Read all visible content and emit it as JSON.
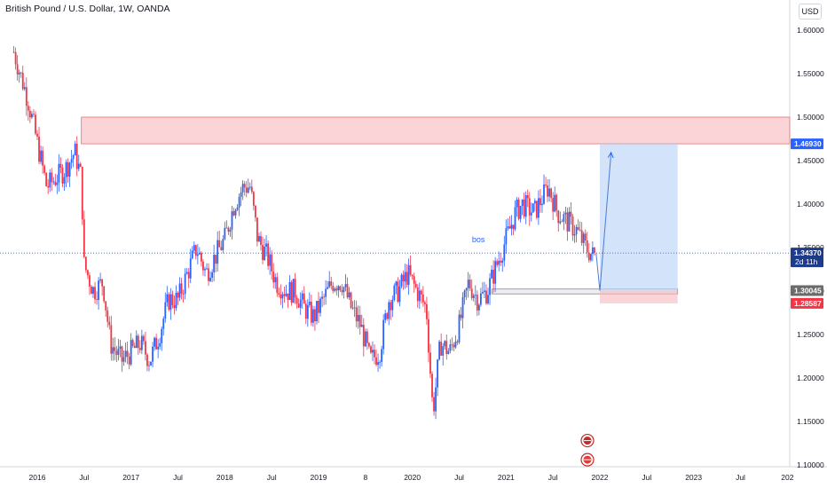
{
  "title": "British Pound / U.S. Dollar, 1W, OANDA",
  "currency": "USD",
  "chart_data": {
    "type": "candlestick",
    "symbol": "GBPUSD",
    "interval": "1W",
    "ylim": [
      1.1,
      1.62
    ],
    "y_ticks": [
      "1.60000",
      "1.55000",
      "1.50000",
      "1.45000",
      "1.40000",
      "1.35000",
      "1.30000",
      "1.25000",
      "1.20000",
      "1.15000",
      "1.10000"
    ],
    "y_tick_values": [
      1.6,
      1.55,
      1.5,
      1.45,
      1.4,
      1.35,
      1.3,
      1.25,
      1.2,
      1.15,
      1.1
    ],
    "x_labels": [
      "2016",
      "Jul",
      "2017",
      "Jul",
      "2018",
      "Jul",
      "2019",
      "8",
      "2020",
      "Jul",
      "2021",
      "Jul",
      "2022",
      "Jul",
      "2023",
      "Jul",
      "202"
    ],
    "x_label_dates": [
      2016.0,
      2016.5,
      2017.0,
      2017.5,
      2018.0,
      2018.5,
      2019.0,
      2019.5,
      2020.0,
      2020.5,
      2021.0,
      2021.5,
      2022.0,
      2022.5,
      2023.0,
      2023.5,
      2024.0
    ],
    "price_path": [
      [
        2015.75,
        1.575
      ],
      [
        2015.9,
        1.52
      ],
      [
        2016.0,
        1.47
      ],
      [
        2016.1,
        1.42
      ],
      [
        2016.2,
        1.43
      ],
      [
        2016.3,
        1.44
      ],
      [
        2016.4,
        1.46
      ],
      [
        2016.47,
        1.43
      ],
      [
        2016.5,
        1.33
      ],
      [
        2016.6,
        1.3
      ],
      [
        2016.7,
        1.31
      ],
      [
        2016.78,
        1.24
      ],
      [
        2016.9,
        1.22
      ],
      [
        2017.0,
        1.23
      ],
      [
        2017.1,
        1.24
      ],
      [
        2017.2,
        1.22
      ],
      [
        2017.3,
        1.25
      ],
      [
        2017.4,
        1.29
      ],
      [
        2017.5,
        1.29
      ],
      [
        2017.6,
        1.32
      ],
      [
        2017.7,
        1.35
      ],
      [
        2017.8,
        1.32
      ],
      [
        2017.9,
        1.34
      ],
      [
        2018.0,
        1.36
      ],
      [
        2018.1,
        1.4
      ],
      [
        2018.2,
        1.42
      ],
      [
        2018.27,
        1.42
      ],
      [
        2018.35,
        1.36
      ],
      [
        2018.45,
        1.34
      ],
      [
        2018.55,
        1.31
      ],
      [
        2018.65,
        1.3
      ],
      [
        2018.75,
        1.3
      ],
      [
        2018.85,
        1.28
      ],
      [
        2018.95,
        1.27
      ],
      [
        2019.05,
        1.29
      ],
      [
        2019.15,
        1.31
      ],
      [
        2019.25,
        1.31
      ],
      [
        2019.35,
        1.28
      ],
      [
        2019.45,
        1.26
      ],
      [
        2019.55,
        1.22
      ],
      [
        2019.65,
        1.23
      ],
      [
        2019.75,
        1.29
      ],
      [
        2019.85,
        1.3
      ],
      [
        2019.95,
        1.32
      ],
      [
        2020.05,
        1.3
      ],
      [
        2020.15,
        1.28
      ],
      [
        2020.22,
        1.16
      ],
      [
        2020.3,
        1.24
      ],
      [
        2020.4,
        1.23
      ],
      [
        2020.5,
        1.26
      ],
      [
        2020.6,
        1.31
      ],
      [
        2020.7,
        1.29
      ],
      [
        2020.8,
        1.3
      ],
      [
        2020.9,
        1.33
      ],
      [
        2021.0,
        1.36
      ],
      [
        2021.1,
        1.39
      ],
      [
        2021.17,
        1.4
      ],
      [
        2021.3,
        1.39
      ],
      [
        2021.4,
        1.41
      ],
      [
        2021.45,
        1.42
      ],
      [
        2021.55,
        1.39
      ],
      [
        2021.65,
        1.38
      ],
      [
        2021.75,
        1.37
      ],
      [
        2021.85,
        1.35
      ],
      [
        2021.93,
        1.34
      ],
      [
        2021.96,
        1.3437
      ]
    ],
    "current_price": 1.3437,
    "current_price_label": "1.34370",
    "countdown": "2d 11h",
    "zones": [
      {
        "name": "resistance-zone",
        "y_bottom": 1.4693,
        "y_top": 1.5,
        "x_start": 2016.47,
        "color": "#f7b7bb"
      },
      {
        "name": "demand-zone",
        "y_bottom": 1.2967,
        "y_top": 1.3023,
        "x_start": 2020.85,
        "x_end": 2022.83,
        "color": "#e0e3eb"
      },
      {
        "name": "stop-zone",
        "y_bottom": 1.2858,
        "y_top": 1.3004,
        "x_start": 2022.0,
        "x_end": 2022.83,
        "color": "#f7b7bb"
      },
      {
        "name": "target-zone",
        "y_bottom": 1.3004,
        "y_top": 1.4693,
        "x_start": 2022.0,
        "x_end": 2022.83,
        "color": "#bcd4f8"
      }
    ],
    "projection_path": [
      [
        2021.96,
        1.3437
      ],
      [
        2022.0,
        1.3004
      ],
      [
        2022.12,
        1.4593
      ]
    ],
    "annotations": [
      {
        "text": "bos",
        "x": 2020.75,
        "y": 1.356,
        "color": "#2962ff"
      }
    ],
    "price_labels": [
      {
        "text": "1.46930",
        "value": 1.4693,
        "color": "#2962ff"
      },
      {
        "text": "1.30045",
        "value": 1.30045,
        "color": "#6b6b6b"
      },
      {
        "text": "1.28587",
        "value": 1.28587,
        "color": "#f23645"
      }
    ],
    "event_markers": [
      {
        "x": 2021.96,
        "y": 1.128,
        "icon": "uk-flag-icon"
      },
      {
        "x": 2021.96,
        "y": 1.106,
        "icon": "us-flag-icon"
      }
    ],
    "colors": {
      "up": "#2962ff",
      "down": "#f23645",
      "axis_text": "#131722",
      "border": "#d1d4dc",
      "price_line": "#2962ff"
    }
  }
}
